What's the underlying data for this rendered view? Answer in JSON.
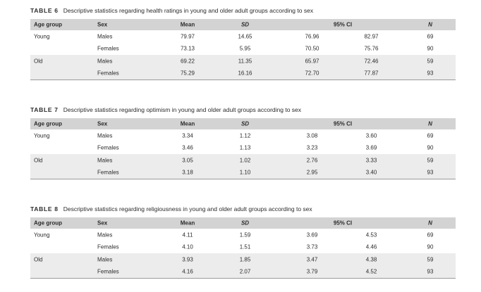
{
  "tables": [
    {
      "label": "TABLE 6",
      "title": "Descriptive statistics regarding health ratings in young and older adult groups according to sex",
      "headers": {
        "group": "Age group",
        "sex": "Sex",
        "mean": "Mean",
        "sd": "SD",
        "ci": "95% CI",
        "n": "N"
      },
      "rows": [
        {
          "group": "Young",
          "sex": "Males",
          "mean": "79.97",
          "sd": "14.65",
          "ci_low": "76.96",
          "ci_high": "82.97",
          "n": "69"
        },
        {
          "group": "",
          "sex": "Females",
          "mean": "73.13",
          "sd": "5.95",
          "ci_low": "70.50",
          "ci_high": "75.76",
          "n": "90"
        },
        {
          "group": "Old",
          "sex": "Males",
          "mean": "69.22",
          "sd": "11.35",
          "ci_low": "65.97",
          "ci_high": "72.46",
          "n": "59"
        },
        {
          "group": "",
          "sex": "Females",
          "mean": "75.29",
          "sd": "16.16",
          "ci_low": "72.70",
          "ci_high": "77.87",
          "n": "93"
        }
      ]
    },
    {
      "label": "TABLE 7",
      "title": "Descriptive statistics regarding optimism in young and older adult groups according to sex",
      "headers": {
        "group": "Age group",
        "sex": "Sex",
        "mean": "Mean",
        "sd": "SD",
        "ci": "95% CI",
        "n": "N"
      },
      "rows": [
        {
          "group": "Young",
          "sex": "Males",
          "mean": "3.34",
          "sd": "1.12",
          "ci_low": "3.08",
          "ci_high": "3.60",
          "n": "69"
        },
        {
          "group": "",
          "sex": "Females",
          "mean": "3.46",
          "sd": "1.13",
          "ci_low": "3.23",
          "ci_high": "3.69",
          "n": "90"
        },
        {
          "group": "Old",
          "sex": "Males",
          "mean": "3.05",
          "sd": "1.02",
          "ci_low": "2.76",
          "ci_high": "3.33",
          "n": "59"
        },
        {
          "group": "",
          "sex": "Females",
          "mean": "3.18",
          "sd": "1.10",
          "ci_low": "2.95",
          "ci_high": "3.40",
          "n": "93"
        }
      ]
    },
    {
      "label": "TABLE 8",
      "title": "Descriptive statistics regarding religiousness in young and older adult groups according to sex",
      "headers": {
        "group": "Age group",
        "sex": "Sex",
        "mean": "Mean",
        "sd": "SD",
        "ci": "95% CI",
        "n": "N"
      },
      "rows": [
        {
          "group": "Young",
          "sex": "Males",
          "mean": "4.11",
          "sd": "1.59",
          "ci_low": "3.69",
          "ci_high": "4.53",
          "n": "69"
        },
        {
          "group": "",
          "sex": "Females",
          "mean": "4.10",
          "sd": "1.51",
          "ci_low": "3.73",
          "ci_high": "4.46",
          "n": "90"
        },
        {
          "group": "Old",
          "sex": "Males",
          "mean": "3.93",
          "sd": "1.85",
          "ci_low": "3.47",
          "ci_high": "4.38",
          "n": "59"
        },
        {
          "group": "",
          "sex": "Females",
          "mean": "4.16",
          "sd": "2.07",
          "ci_low": "3.79",
          "ci_high": "4.52",
          "n": "93"
        }
      ]
    }
  ]
}
